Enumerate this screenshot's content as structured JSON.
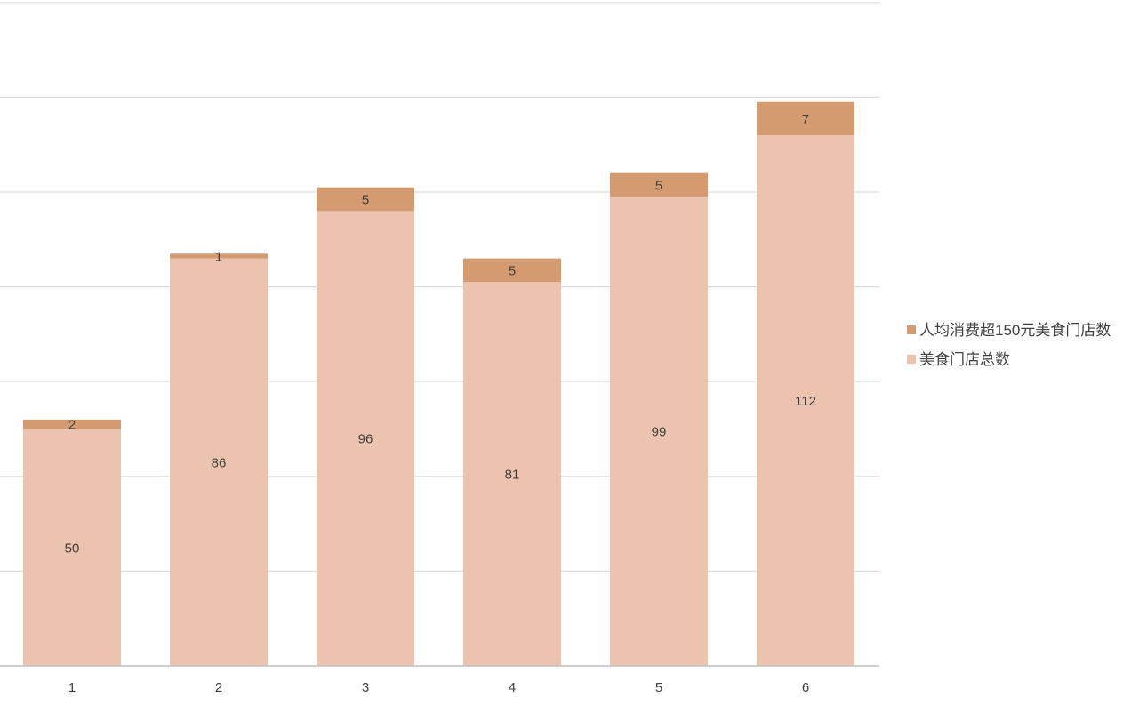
{
  "chart_data": {
    "type": "bar",
    "stacked": true,
    "categories": [
      "1",
      "2",
      "3",
      "4",
      "5",
      "6"
    ],
    "series": [
      {
        "name": "美食门店总数",
        "color": "#ecc3af",
        "values": [
          50,
          86,
          96,
          81,
          99,
          112
        ]
      },
      {
        "name": "人均消费超150元美食门店数",
        "color": "#d49b70",
        "values": [
          2,
          1,
          5,
          5,
          5,
          7
        ]
      }
    ],
    "legend_order": [
      1,
      0
    ],
    "ylim": [
      0,
      140
    ],
    "grid_step": 20,
    "grid": true,
    "legend_position": "right",
    "colors": {
      "grid": "#dedede",
      "axis": "#bfbfbf",
      "text": "#404040"
    }
  }
}
